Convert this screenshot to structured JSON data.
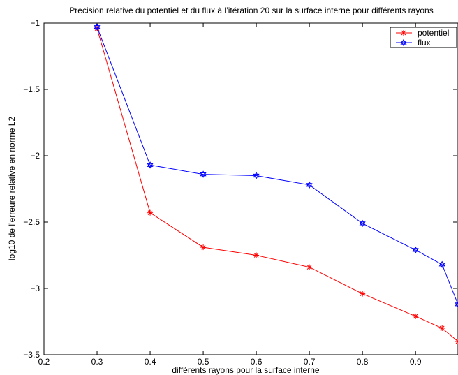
{
  "chart_data": {
    "type": "line",
    "title": "Precision relative du potentiel et du flux à l’itération 20 sur la surface interne pour différents rayons",
    "xlabel": "différents rayons pour la surface interne",
    "ylabel": "log10 de l’erreure relative en norme L2",
    "xlim": [
      0.2,
      0.98
    ],
    "ylim": [
      -3.5,
      -1
    ],
    "xticks": [
      "0.2",
      "0.3",
      "0.4",
      "0.5",
      "0.6",
      "0.7",
      "0.8",
      "0.9"
    ],
    "yticks": [
      "-1",
      "-1.5",
      "-2",
      "-2.5",
      "-3",
      "-3.5"
    ],
    "grid": false,
    "legend_position": "top-right",
    "series": [
      {
        "name": "potentiel",
        "color": "#ff0000",
        "marker": "asterisk",
        "x": [
          0.3,
          0.4,
          0.5,
          0.6,
          0.7,
          0.8,
          0.9,
          0.95,
          0.98
        ],
        "y": [
          -1.04,
          -2.43,
          -2.69,
          -2.75,
          -2.84,
          -3.04,
          -3.21,
          -3.3,
          -3.4
        ]
      },
      {
        "name": "flux",
        "color": "#0000ff",
        "marker": "hexagram",
        "x": [
          0.3,
          0.4,
          0.5,
          0.6,
          0.7,
          0.8,
          0.9,
          0.95,
          0.98
        ],
        "y": [
          -1.03,
          -2.07,
          -2.14,
          -2.15,
          -2.22,
          -2.51,
          -2.71,
          -2.82,
          -3.12
        ]
      }
    ]
  }
}
